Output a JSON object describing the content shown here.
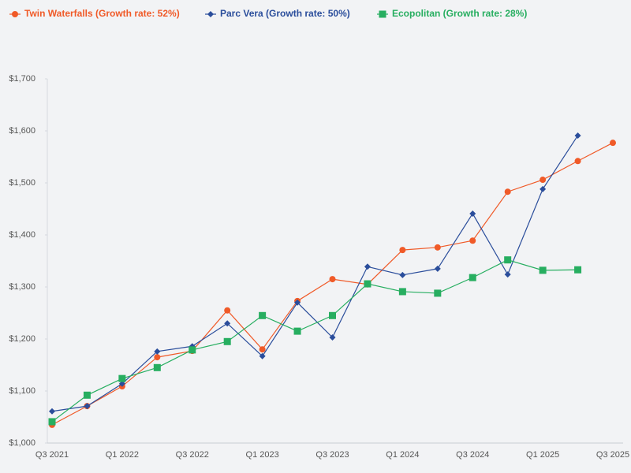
{
  "chart_data": {
    "type": "line",
    "categories": [
      "Q3 2021",
      null,
      "Q1 2022",
      null,
      "Q3 2022",
      null,
      "Q1 2023",
      null,
      "Q3 2023",
      null,
      "Q1 2024",
      null,
      "Q3 2024",
      null,
      "Q1 2025",
      null,
      "Q3 2025"
    ],
    "series": [
      {
        "name": "Twin Waterfalls (Growth rate: 52%)",
        "color": "#f05a28",
        "marker": "circle",
        "values": [
          1035,
          1071,
          1109,
          1165,
          1177,
          1255,
          1180,
          1273,
          1315,
          1305,
          1371,
          1376,
          1389,
          1483,
          1506,
          1542,
          1577
        ]
      },
      {
        "name": "Parc Vera (Growth rate: 50%)",
        "color": "#2a4d9b",
        "marker": "diamond",
        "values": [
          1061,
          1071,
          1114,
          1176,
          1186,
          1230,
          1167,
          1270,
          1203,
          1339,
          1323,
          1335,
          1441,
          1324,
          1488,
          1591,
          null
        ]
      },
      {
        "name": "Ecopolitan (Growth rate: 28%)",
        "color": "#27ae60",
        "marker": "square",
        "values": [
          1041,
          1092,
          1124,
          1145,
          1179,
          1195,
          1245,
          1215,
          1245,
          1306,
          1291,
          1288,
          1318,
          1352,
          1332,
          1333,
          null
        ]
      }
    ],
    "ylim": [
      1000,
      1700
    ],
    "yticks": [
      {
        "value": 1000,
        "label": "$1,000"
      },
      {
        "value": 1100,
        "label": "$1,100"
      },
      {
        "value": 1200,
        "label": "$1,200"
      },
      {
        "value": 1300,
        "label": "$1,300"
      },
      {
        "value": 1400,
        "label": "$1,400"
      },
      {
        "value": 1500,
        "label": "$1,500"
      },
      {
        "value": 1600,
        "label": "$1,600"
      },
      {
        "value": 1700,
        "label": "$1,700"
      }
    ],
    "grid": false,
    "legend": "top"
  }
}
